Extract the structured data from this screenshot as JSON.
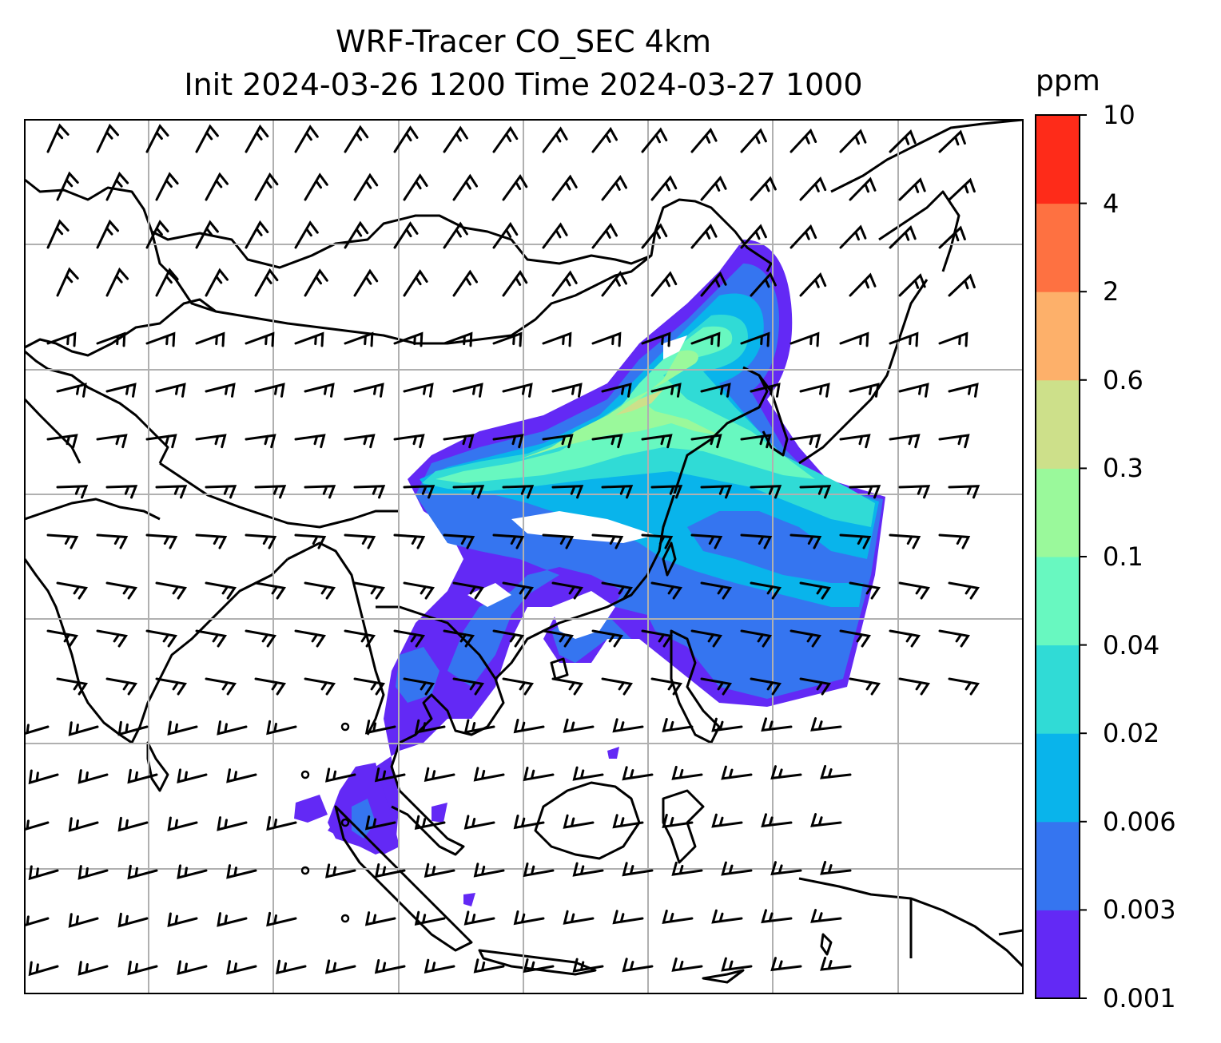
{
  "header": {
    "title": "WRF-Tracer CO_SEC 4km",
    "subtitle": "Init 2024-03-26 1200 Time 2024-03-27 1000"
  },
  "map": {
    "variable": "CO_SEC",
    "resolution": "4km",
    "init_time": "2024-03-26 1200",
    "valid_time": "2024-03-27 1000",
    "gridlines": true,
    "coastlines": true,
    "wind_barbs": true
  },
  "colorbar": {
    "unit": "ppm",
    "levels": [
      "0.001",
      "0.003",
      "0.006",
      "0.02",
      "0.04",
      "0.1",
      "0.3",
      "0.6",
      "2",
      "4",
      "10"
    ],
    "colors": [
      "#6329f5",
      "#3575f0",
      "#09b4eb",
      "#30dbd6",
      "#68f8c0",
      "#9af99b",
      "#cde08a",
      "#fdb06a",
      "#fe7141",
      "#fe2b19"
    ]
  }
}
